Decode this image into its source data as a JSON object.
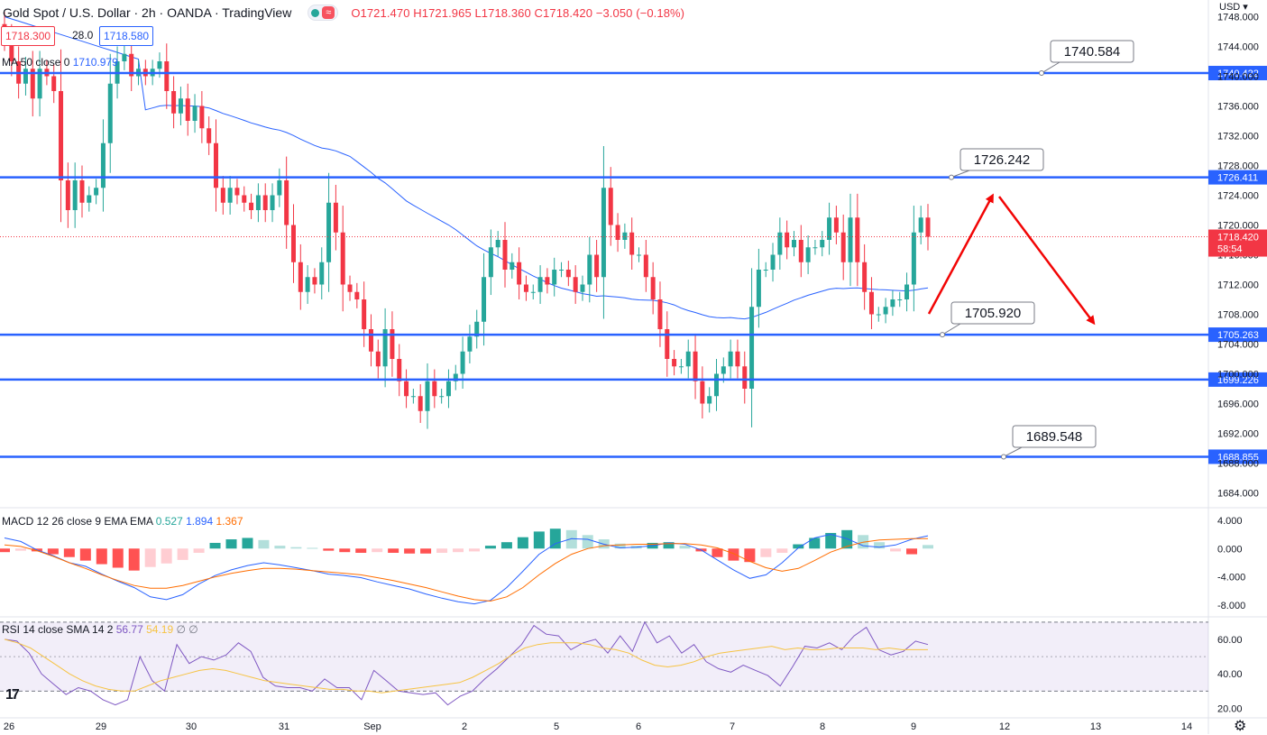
{
  "header": {
    "title": "Gold Spot / U.S. Dollar · 2h · OANDA · TradingView",
    "ohlc": "O1721.470 H1721.965 L1718.360 C1718.420 −3.050 (−0.18%)"
  },
  "quote": {
    "sell": "1718.300",
    "spread": "28.0",
    "buy": "1718.580"
  },
  "currency": "USD",
  "ma_legend": {
    "label": "MA 50 close 0",
    "value": "1710.979"
  },
  "macd_legend": {
    "label": "MACD 12 26 close 9 EMA EMA",
    "hist": "0.527",
    "macd": "1.894",
    "signal": "1.367"
  },
  "rsi_legend": {
    "label": "RSI 14 close SMA 14 2",
    "rsi": "56.77",
    "sma": "54.19",
    "extra": "∅ ∅"
  },
  "colors": {
    "up": "#26a69a",
    "down": "#f23645",
    "level": "#2962ff",
    "ma": "#2962ff",
    "arrow": "#f20505",
    "signal": "#ff6d00",
    "rsi": "#7e57c2",
    "rsi_sma": "#f6c343"
  },
  "chart_data": [
    {
      "type": "candlestick",
      "title": "Gold Spot / U.S. Dollar",
      "ylim": [
        1682,
        1750
      ],
      "yticks": [
        1684,
        1688,
        1692,
        1696,
        1700,
        1704,
        1708,
        1712,
        1716,
        1720,
        1724,
        1728,
        1732,
        1736,
        1740,
        1744,
        1748
      ],
      "x_labels": [
        "26",
        "29",
        "30",
        "31",
        "Sep",
        "2",
        "5",
        "6",
        "7",
        "8",
        "9",
        "12",
        "13",
        "14"
      ],
      "current_price": {
        "value": "1718.420",
        "countdown": "58:54"
      },
      "levels": [
        1740.422,
        1726.411,
        1705.263,
        1699.226,
        1688.855
      ],
      "callouts": [
        "1740.584",
        "1726.242",
        "1705.920",
        "1689.548"
      ],
      "candles_close": [
        1745,
        1742,
        1739,
        1741,
        1737,
        1741,
        1740,
        1738,
        1726,
        1722,
        1726,
        1723,
        1724,
        1725,
        1731,
        1739,
        1742,
        1743,
        1740,
        1741,
        1740,
        1741,
        1742,
        1738,
        1735,
        1737,
        1734,
        1736,
        1733,
        1731,
        1725,
        1723,
        1725,
        1724,
        1723,
        1722,
        1724,
        1722,
        1724,
        1726,
        1720,
        1715,
        1711,
        1713,
        1712,
        1715,
        1723,
        1719,
        1712,
        1711,
        1710,
        1706,
        1703,
        1701,
        1706,
        1702,
        1699,
        1697,
        1697,
        1695,
        1699,
        1697,
        1697,
        1699,
        1700,
        1703,
        1705,
        1707,
        1713,
        1717,
        1718,
        1714,
        1715,
        1712,
        1711,
        1711,
        1713,
        1712,
        1714,
        1714,
        1713,
        1711,
        1712,
        1716,
        1713,
        1725,
        1720,
        1718,
        1719,
        1716,
        1716,
        1713,
        1710,
        1706,
        1702,
        1701,
        1701,
        1703,
        1699,
        1696,
        1697,
        1700,
        1701,
        1703,
        1701,
        1698,
        1709,
        1714,
        1714,
        1716,
        1719,
        1717,
        1718,
        1715,
        1717,
        1717,
        1718,
        1721,
        1719,
        1715,
        1721,
        1715,
        1711,
        1708,
        1708,
        1709,
        1710,
        1710,
        1712,
        1719,
        1721,
        1718.42
      ],
      "ma50_label": "MA 50"
    },
    {
      "type": "macd",
      "ylim": [
        -9.5,
        5.5
      ],
      "yticks": [
        4,
        0,
        -4,
        -8
      ],
      "macd": [
        1.5,
        1,
        -0.2,
        -1,
        -2,
        -2.5,
        -3.6,
        -4.6,
        -5.5,
        -6.8,
        -7.2,
        -6.5,
        -5,
        -3.8,
        -3,
        -2.4,
        -2,
        -2.3,
        -2.7,
        -3.1,
        -3.6,
        -3.8,
        -4.1,
        -4.7,
        -5.2,
        -5.7,
        -6.4,
        -7,
        -7.5,
        -7.8,
        -7.3,
        -5.5,
        -3.2,
        -0.8,
        0.7,
        1.4,
        1.3,
        0.6,
        0.1,
        0.2,
        0.4,
        0.8,
        0.6,
        -0.2,
        -1.6,
        -3,
        -4.2,
        -3.7,
        -2,
        0.1,
        1.5,
        2,
        1.4,
        0.4,
        0.2,
        0.5,
        1.3,
        1.8
      ],
      "signal": [
        0.5,
        0.3,
        -0.3,
        -1.1,
        -2,
        -2.8,
        -3.7,
        -4.5,
        -5.2,
        -5.6,
        -5.6,
        -5.2,
        -4.6,
        -4,
        -3.5,
        -3.1,
        -2.8,
        -2.8,
        -2.9,
        -3.1,
        -3.3,
        -3.5,
        -3.7,
        -4.1,
        -4.5,
        -5,
        -5.5,
        -6.1,
        -6.7,
        -7.2,
        -7.4,
        -6.8,
        -5.5,
        -3.7,
        -2.1,
        -0.8,
        0,
        0.4,
        0.5,
        0.6,
        0.6,
        0.7,
        0.7,
        0.5,
        0.1,
        -0.7,
        -1.8,
        -2.7,
        -3.2,
        -2.8,
        -1.7,
        -0.5,
        0.3,
        0.9,
        1.2,
        1.3,
        1.4,
        1.4
      ],
      "hist": [
        -0.5,
        -0.3,
        -0.4,
        -0.8,
        -1.2,
        -1.7,
        -2.2,
        -2.7,
        -3.1,
        -2.6,
        -2.1,
        -1.6,
        -0.6,
        0.8,
        1.3,
        1.5,
        1.2,
        0.4,
        0.2,
        0.1,
        -0.3,
        -0.5,
        -0.6,
        -0.5,
        -0.6,
        -0.7,
        -0.7,
        -0.6,
        -0.5,
        -0.4,
        0.4,
        0.9,
        1.6,
        2.4,
        2.8,
        2.6,
        1.9,
        1.3,
        0.7,
        0.4,
        0.8,
        0.9,
        0.4,
        -0.4,
        -1.2,
        -1.7,
        -1.9,
        -1.2,
        -0.6,
        0.6,
        1.5,
        2.2,
        2.6,
        1.9,
        0.9,
        -0.4,
        -0.8,
        0.5
      ]
    },
    {
      "type": "rsi",
      "ylim": [
        15,
        72
      ],
      "yticks": [
        60,
        40,
        20
      ],
      "bands": [
        70,
        30
      ],
      "midline": 50,
      "rsi": [
        60,
        59,
        52,
        40,
        34,
        28,
        32,
        30,
        25,
        22,
        25,
        50,
        36,
        30,
        57,
        46,
        50,
        48,
        51,
        58,
        53,
        38,
        33,
        32,
        32,
        30,
        37,
        32,
        32,
        25,
        42,
        36,
        30,
        29,
        28,
        29,
        22,
        27,
        30,
        37,
        43,
        50,
        57,
        68,
        63,
        62,
        54,
        58,
        60,
        52,
        62,
        53,
        70,
        58,
        62,
        52,
        57,
        47,
        43,
        41,
        45,
        42,
        39,
        33,
        44,
        56,
        55,
        58,
        54,
        62,
        67,
        54,
        51,
        53,
        59,
        57
      ],
      "sma": [
        60,
        58,
        55,
        50,
        45,
        40,
        36,
        33,
        31,
        30,
        30,
        33,
        36,
        38,
        40,
        42,
        43,
        42,
        40,
        38,
        36,
        35,
        34,
        33,
        32,
        31,
        31,
        30,
        30,
        29,
        30,
        31,
        32,
        33,
        34,
        35,
        38,
        42,
        46,
        51,
        55,
        57,
        58,
        58,
        58,
        57,
        55,
        54,
        52,
        48,
        45,
        44,
        45,
        47,
        50,
        52,
        53,
        54,
        55,
        56,
        54,
        55,
        54,
        54,
        55,
        55,
        55,
        54,
        55,
        54,
        54,
        54
      ]
    }
  ]
}
